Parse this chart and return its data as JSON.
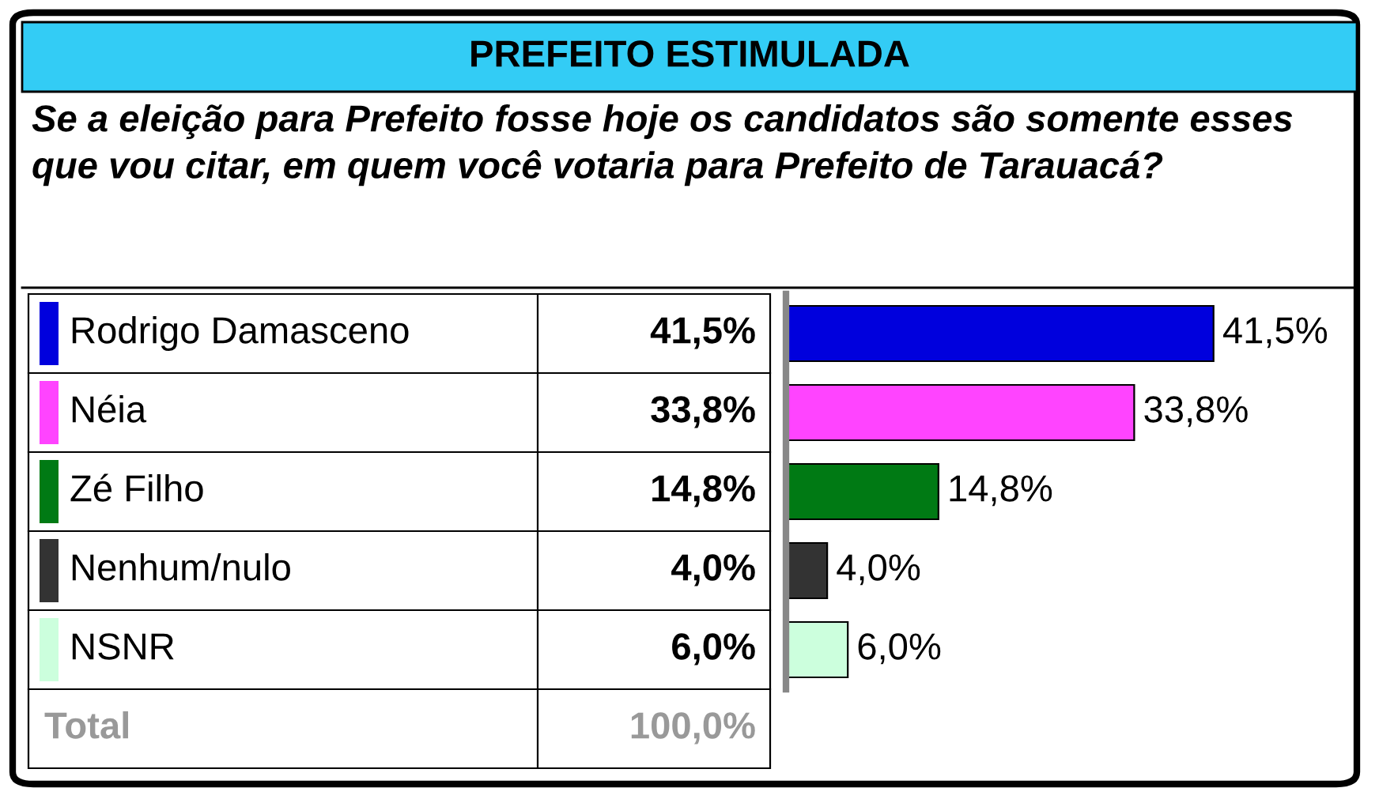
{
  "chart_data": {
    "type": "bar",
    "orientation": "horizontal",
    "title": "PREFEITO ESTIMULADA",
    "subtitle": "Se a eleição para Prefeito fosse hoje os candidatos são somente esses que vou citar, em quem você votaria para Prefeito de Tarauacá?",
    "categories": [
      "Rodrigo Damasceno",
      "Néia",
      "Zé Filho",
      "Nenhum/nulo",
      "NSNR"
    ],
    "values": [
      41.5,
      33.8,
      14.8,
      4.0,
      6.0
    ],
    "colors": [
      "#0000dd",
      "#ff44ff",
      "#007a14",
      "#333333",
      "#ccffdd"
    ],
    "value_labels": [
      "41,5%",
      "33,8%",
      "14,8%",
      "4,0%",
      "6,0%"
    ],
    "annotations": [
      "Total",
      "100,0%"
    ]
  }
}
